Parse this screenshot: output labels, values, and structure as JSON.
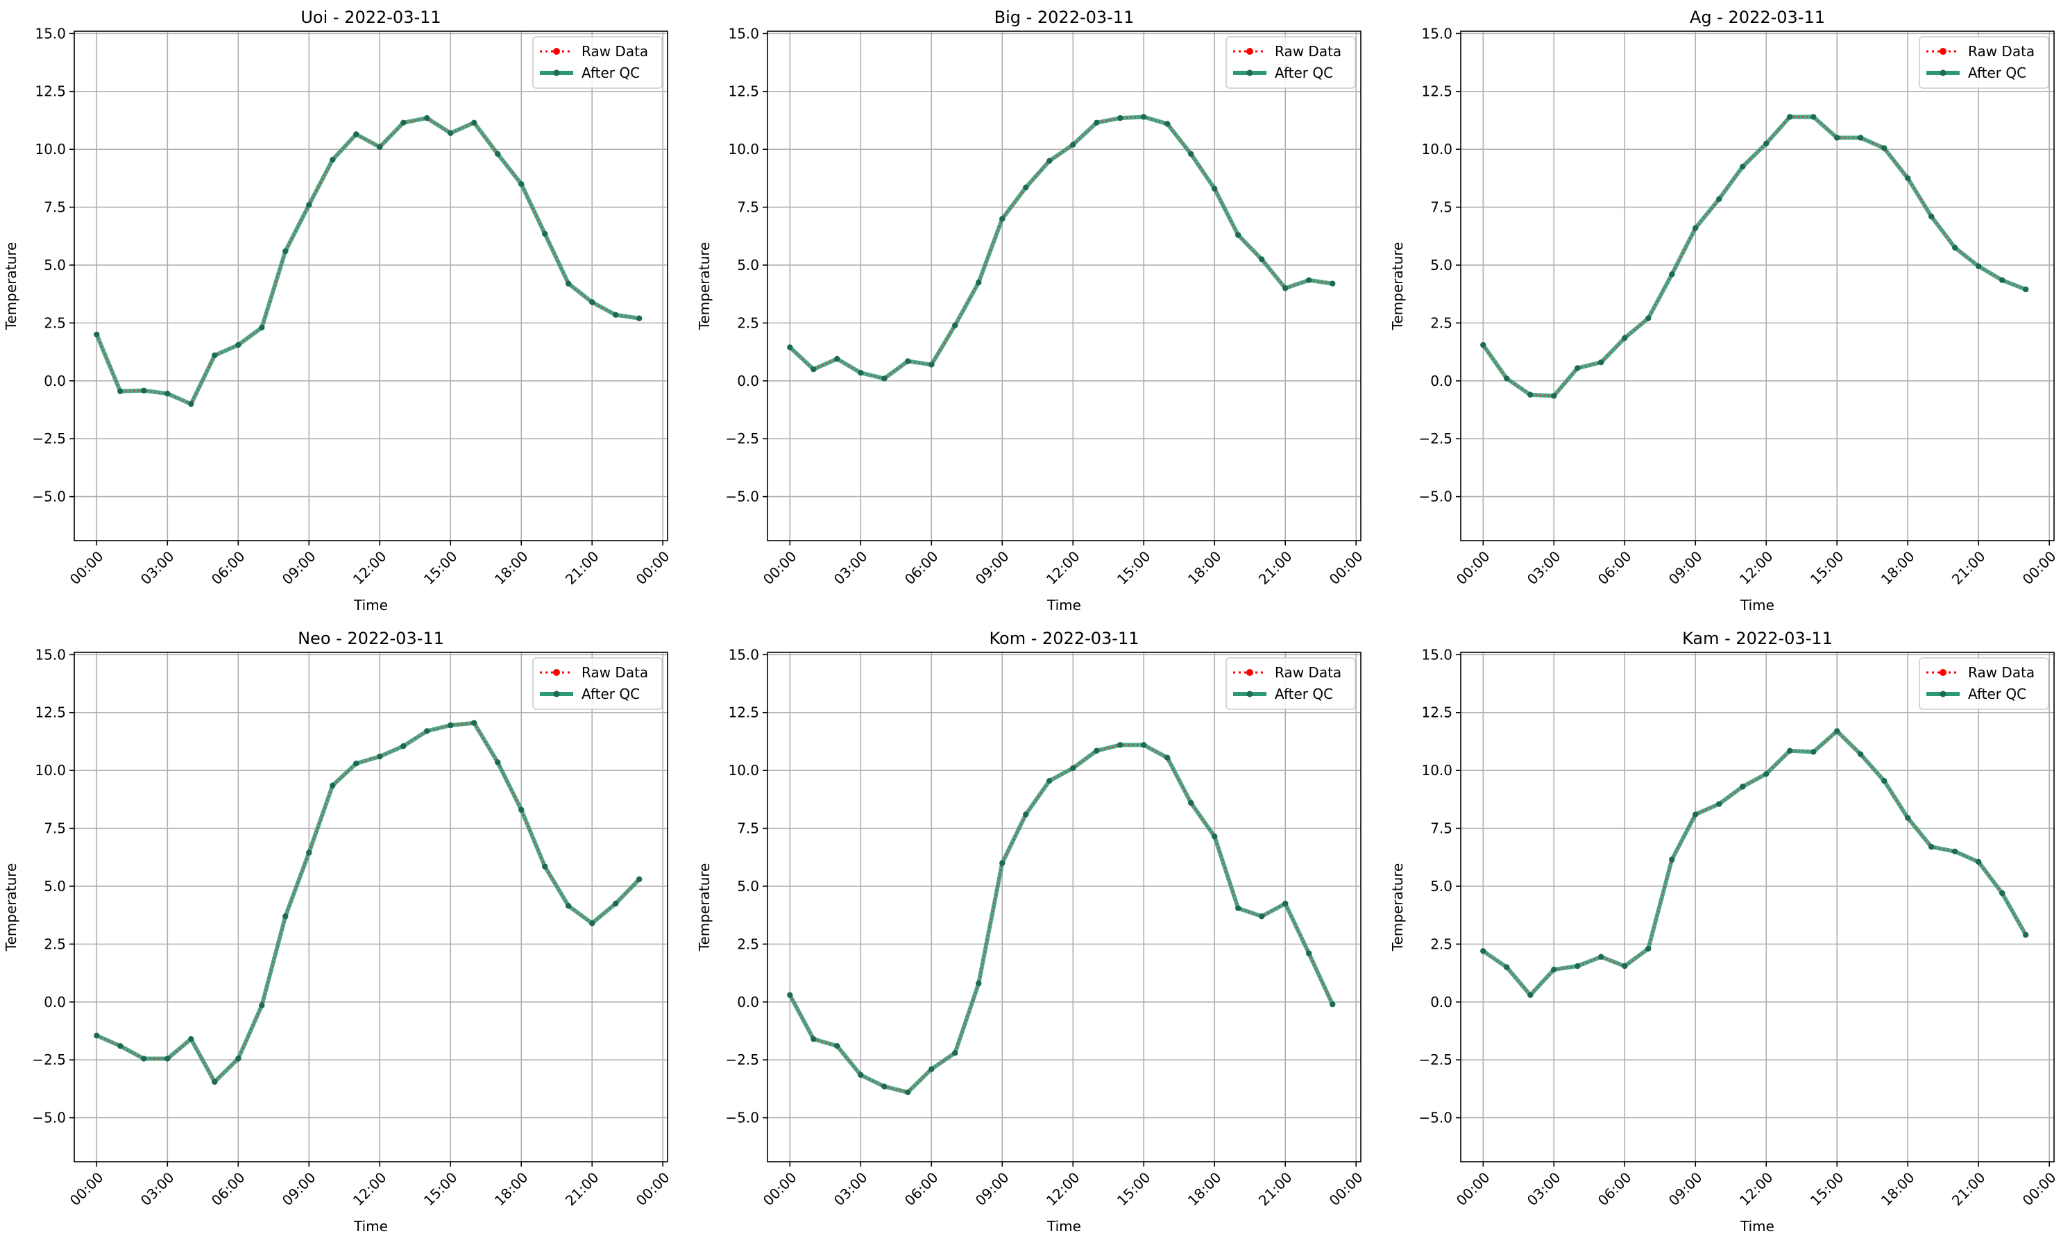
{
  "chart_data": [
    {
      "type": "line",
      "title": "Uoi - 2022-03-11",
      "xlabel": "Time",
      "ylabel": "Temperature",
      "xlim": [
        -0.95,
        24.2
      ],
      "ylim": [
        -6.9,
        15.1
      ],
      "xticks": [
        0,
        3,
        6,
        9,
        12,
        15,
        18,
        21,
        24
      ],
      "xticklabels": [
        "00:00",
        "03:00",
        "06:00",
        "09:00",
        "12:00",
        "15:00",
        "18:00",
        "21:00",
        "00:00"
      ],
      "yticks": [
        -5.0,
        -2.5,
        0.0,
        2.5,
        5.0,
        7.5,
        10.0,
        12.5,
        15.0
      ],
      "yticklabels": [
        "−5.0",
        "−2.5",
        "0.0",
        "2.5",
        "5.0",
        "7.5",
        "10.0",
        "12.5",
        "15.0"
      ],
      "grid": true,
      "legend_position": "top-right",
      "x": [
        0,
        1,
        2,
        3,
        4,
        5,
        6,
        7,
        8,
        9,
        10,
        11,
        12,
        13,
        14,
        15,
        16,
        17,
        18,
        19,
        20,
        21,
        22,
        23
      ],
      "series": [
        {
          "name": "Raw Data",
          "style": "dotted-red",
          "values": [
            2.0,
            -0.45,
            -0.42,
            -0.55,
            -1.0,
            1.1,
            1.55,
            2.3,
            5.6,
            7.6,
            9.55,
            10.65,
            10.1,
            11.15,
            11.35,
            10.7,
            11.15,
            9.8,
            8.5,
            6.35,
            4.2,
            3.4,
            2.85,
            2.7
          ]
        },
        {
          "name": "After QC",
          "style": "solid-green",
          "values": [
            2.0,
            -0.45,
            -0.42,
            -0.55,
            -1.0,
            1.1,
            1.55,
            2.3,
            5.6,
            7.6,
            9.55,
            10.65,
            10.1,
            11.15,
            11.35,
            10.7,
            11.15,
            9.8,
            8.5,
            6.35,
            4.2,
            3.4,
            2.85,
            2.7
          ]
        }
      ]
    },
    {
      "type": "line",
      "title": "Big - 2022-03-11",
      "xlabel": "Time",
      "ylabel": "Temperature",
      "xlim": [
        -0.95,
        24.2
      ],
      "ylim": [
        -6.9,
        15.1
      ],
      "xticks": [
        0,
        3,
        6,
        9,
        12,
        15,
        18,
        21,
        24
      ],
      "xticklabels": [
        "00:00",
        "03:00",
        "06:00",
        "09:00",
        "12:00",
        "15:00",
        "18:00",
        "21:00",
        "00:00"
      ],
      "yticks": [
        -5.0,
        -2.5,
        0.0,
        2.5,
        5.0,
        7.5,
        10.0,
        12.5,
        15.0
      ],
      "yticklabels": [
        "−5.0",
        "−2.5",
        "0.0",
        "2.5",
        "5.0",
        "7.5",
        "10.0",
        "12.5",
        "15.0"
      ],
      "grid": true,
      "legend_position": "top-right",
      "x": [
        0,
        1,
        2,
        3,
        4,
        5,
        6,
        7,
        8,
        9,
        10,
        11,
        12,
        13,
        14,
        15,
        16,
        17,
        18,
        19,
        20,
        21,
        22,
        23
      ],
      "series": [
        {
          "name": "Raw Data",
          "style": "dotted-red",
          "values": [
            1.45,
            0.5,
            0.95,
            0.35,
            0.1,
            0.85,
            0.7,
            2.4,
            4.25,
            7.0,
            8.35,
            9.5,
            10.2,
            11.15,
            11.35,
            11.4,
            11.1,
            9.8,
            8.3,
            6.3,
            5.25,
            4.0,
            4.35,
            4.2
          ]
        },
        {
          "name": "After QC",
          "style": "solid-green",
          "values": [
            1.45,
            0.5,
            0.95,
            0.35,
            0.1,
            0.85,
            0.7,
            2.4,
            4.25,
            7.0,
            8.35,
            9.5,
            10.2,
            11.15,
            11.35,
            11.4,
            11.1,
            9.8,
            8.3,
            6.3,
            5.25,
            4.0,
            4.35,
            4.2
          ]
        }
      ]
    },
    {
      "type": "line",
      "title": "Ag - 2022-03-11",
      "xlabel": "Time",
      "ylabel": "Temperature",
      "xlim": [
        -0.95,
        24.2
      ],
      "ylim": [
        -6.9,
        15.1
      ],
      "xticks": [
        0,
        3,
        6,
        9,
        12,
        15,
        18,
        21,
        24
      ],
      "xticklabels": [
        "00:00",
        "03:00",
        "06:00",
        "09:00",
        "12:00",
        "15:00",
        "18:00",
        "21:00",
        "00:00"
      ],
      "yticks": [
        -5.0,
        -2.5,
        0.0,
        2.5,
        5.0,
        7.5,
        10.0,
        12.5,
        15.0
      ],
      "yticklabels": [
        "−5.0",
        "−2.5",
        "0.0",
        "2.5",
        "5.0",
        "7.5",
        "10.0",
        "12.5",
        "15.0"
      ],
      "grid": true,
      "legend_position": "top-right",
      "x": [
        0,
        1,
        2,
        3,
        4,
        5,
        6,
        7,
        8,
        9,
        10,
        11,
        12,
        13,
        14,
        15,
        16,
        17,
        18,
        19,
        20,
        21,
        22,
        23
      ],
      "series": [
        {
          "name": "Raw Data",
          "style": "dotted-red",
          "values": [
            1.55,
            0.1,
            -0.6,
            -0.65,
            0.55,
            0.8,
            1.85,
            2.7,
            4.6,
            6.6,
            7.85,
            9.25,
            10.25,
            11.4,
            11.4,
            10.5,
            10.5,
            10.05,
            8.75,
            7.1,
            5.75,
            4.95,
            4.35,
            3.95
          ]
        },
        {
          "name": "After QC",
          "style": "solid-green",
          "values": [
            1.55,
            0.1,
            -0.6,
            -0.65,
            0.55,
            0.8,
            1.85,
            2.7,
            4.6,
            6.6,
            7.85,
            9.25,
            10.25,
            11.4,
            11.4,
            10.5,
            10.5,
            10.05,
            8.75,
            7.1,
            5.75,
            4.95,
            4.35,
            3.95
          ]
        }
      ]
    },
    {
      "type": "line",
      "title": "Neo - 2022-03-11",
      "xlabel": "Time",
      "ylabel": "Temperature",
      "xlim": [
        -0.95,
        24.2
      ],
      "ylim": [
        -6.9,
        15.1
      ],
      "xticks": [
        0,
        3,
        6,
        9,
        12,
        15,
        18,
        21,
        24
      ],
      "xticklabels": [
        "00:00",
        "03:00",
        "06:00",
        "09:00",
        "12:00",
        "15:00",
        "18:00",
        "21:00",
        "00:00"
      ],
      "yticks": [
        -5.0,
        -2.5,
        0.0,
        2.5,
        5.0,
        7.5,
        10.0,
        12.5,
        15.0
      ],
      "yticklabels": [
        "−5.0",
        "−2.5",
        "0.0",
        "2.5",
        "5.0",
        "7.5",
        "10.0",
        "12.5",
        "15.0"
      ],
      "grid": true,
      "legend_position": "top-right",
      "x": [
        0,
        1,
        2,
        3,
        4,
        5,
        6,
        7,
        8,
        9,
        10,
        11,
        12,
        13,
        14,
        15,
        16,
        17,
        18,
        19,
        20,
        21,
        22,
        23
      ],
      "series": [
        {
          "name": "Raw Data",
          "style": "dotted-red",
          "values": [
            -1.45,
            -1.9,
            -2.45,
            -2.45,
            -1.6,
            -3.45,
            -2.45,
            -0.15,
            3.7,
            6.45,
            9.35,
            10.3,
            10.6,
            11.05,
            11.7,
            11.95,
            12.05,
            10.35,
            8.3,
            5.85,
            4.15,
            3.4,
            4.25,
            5.3
          ]
        },
        {
          "name": "After QC",
          "style": "solid-green",
          "values": [
            -1.45,
            -1.9,
            -2.45,
            -2.45,
            -1.6,
            -3.45,
            -2.45,
            -0.15,
            3.7,
            6.45,
            9.35,
            10.3,
            10.6,
            11.05,
            11.7,
            11.95,
            12.05,
            10.35,
            8.3,
            5.85,
            4.15,
            3.4,
            4.25,
            5.3
          ]
        }
      ]
    },
    {
      "type": "line",
      "title": "Kom - 2022-03-11",
      "xlabel": "Time",
      "ylabel": "Temperature",
      "xlim": [
        -0.95,
        24.2
      ],
      "ylim": [
        -6.9,
        15.1
      ],
      "xticks": [
        0,
        3,
        6,
        9,
        12,
        15,
        18,
        21,
        24
      ],
      "xticklabels": [
        "00:00",
        "03:00",
        "06:00",
        "09:00",
        "12:00",
        "15:00",
        "18:00",
        "21:00",
        "00:00"
      ],
      "yticks": [
        -5.0,
        -2.5,
        0.0,
        2.5,
        5.0,
        7.5,
        10.0,
        12.5,
        15.0
      ],
      "yticklabels": [
        "−5.0",
        "−2.5",
        "0.0",
        "2.5",
        "5.0",
        "7.5",
        "10.0",
        "12.5",
        "15.0"
      ],
      "grid": true,
      "legend_position": "top-right",
      "x": [
        0,
        1,
        2,
        3,
        4,
        5,
        6,
        7,
        8,
        9,
        10,
        11,
        12,
        13,
        14,
        15,
        16,
        17,
        18,
        19,
        20,
        21,
        22,
        23
      ],
      "series": [
        {
          "name": "Raw Data",
          "style": "dotted-red",
          "values": [
            0.3,
            -1.6,
            -1.9,
            -3.15,
            -3.65,
            -3.9,
            -2.9,
            -2.2,
            0.8,
            6.0,
            8.1,
            9.55,
            10.1,
            10.85,
            11.1,
            11.1,
            10.55,
            8.6,
            7.15,
            4.05,
            3.7,
            4.25,
            2.1,
            -0.1
          ]
        },
        {
          "name": "After QC",
          "style": "solid-green",
          "values": [
            0.3,
            -1.6,
            -1.9,
            -3.15,
            -3.65,
            -3.9,
            -2.9,
            -2.2,
            0.8,
            6.0,
            8.1,
            9.55,
            10.1,
            10.85,
            11.1,
            11.1,
            10.55,
            8.6,
            7.15,
            4.05,
            3.7,
            4.25,
            2.1,
            -0.1
          ]
        }
      ]
    },
    {
      "type": "line",
      "title": "Kam - 2022-03-11",
      "xlabel": "Time",
      "ylabel": "Temperature",
      "xlim": [
        -0.95,
        24.2
      ],
      "ylim": [
        -6.9,
        15.1
      ],
      "xticks": [
        0,
        3,
        6,
        9,
        12,
        15,
        18,
        21,
        24
      ],
      "xticklabels": [
        "00:00",
        "03:00",
        "06:00",
        "09:00",
        "12:00",
        "15:00",
        "18:00",
        "21:00",
        "00:00"
      ],
      "yticks": [
        -5.0,
        -2.5,
        0.0,
        2.5,
        5.0,
        7.5,
        10.0,
        12.5,
        15.0
      ],
      "yticklabels": [
        "−5.0",
        "−2.5",
        "0.0",
        "2.5",
        "5.0",
        "7.5",
        "10.0",
        "12.5",
        "15.0"
      ],
      "grid": true,
      "legend_position": "top-right",
      "x": [
        0,
        1,
        2,
        3,
        4,
        5,
        6,
        7,
        8,
        9,
        10,
        11,
        12,
        13,
        14,
        15,
        16,
        17,
        18,
        19,
        20,
        21,
        22,
        23
      ],
      "series": [
        {
          "name": "Raw Data",
          "style": "dotted-red",
          "values": [
            2.2,
            1.5,
            0.3,
            1.4,
            1.55,
            1.95,
            1.55,
            2.3,
            6.15,
            8.1,
            8.55,
            9.3,
            9.85,
            10.85,
            10.8,
            11.7,
            10.7,
            9.55,
            7.95,
            6.7,
            6.5,
            6.05,
            4.7,
            2.9
          ]
        },
        {
          "name": "After QC",
          "style": "solid-green",
          "values": [
            2.2,
            1.5,
            0.3,
            1.4,
            1.55,
            1.95,
            1.55,
            2.3,
            6.15,
            8.1,
            8.55,
            9.3,
            9.85,
            10.85,
            10.8,
            11.7,
            10.7,
            9.55,
            7.95,
            6.7,
            6.5,
            6.05,
            4.7,
            2.9
          ]
        }
      ]
    }
  ],
  "colors": {
    "raw": "#ff0000",
    "qc_line": "#2e9a74",
    "qc_marker": "#1d6b52",
    "grid": "#b0b0b0",
    "axis": "#000000"
  }
}
